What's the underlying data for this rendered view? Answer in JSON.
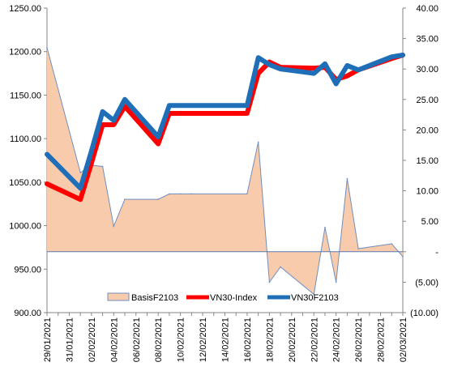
{
  "chart_data": {
    "type": "line",
    "title": "",
    "xlabel": "",
    "ylabel": "",
    "y2label": "",
    "ylim": [
      900,
      1250
    ],
    "y2lim": [
      -10,
      40
    ],
    "y_ticks": [
      "900.00",
      "950.00",
      "1000.00",
      "1050.00",
      "1100.00",
      "1150.00",
      "1200.00",
      "1250.00"
    ],
    "y2_ticks": [
      "(10.00)",
      "(5.00)",
      "-",
      "5.00",
      "10.00",
      "15.00",
      "20.00",
      "25.00",
      "30.00",
      "35.00",
      "40.00"
    ],
    "x_tick_labels": [
      "29/01/2021",
      "31/01/2021",
      "02/02/2021",
      "04/02/2021",
      "06/02/2021",
      "08/02/2021",
      "10/02/2021",
      "12/02/2021",
      "14/02/2021",
      "16/02/2021",
      "18/02/2021",
      "20/02/2021",
      "22/02/2021",
      "24/02/2021",
      "26/02/2021",
      "28/02/2021",
      "02/03/2021"
    ],
    "x_range": [
      "2021-01-29",
      "2021-03-02"
    ],
    "legend_position": "bottom",
    "grid": false,
    "series": [
      {
        "name": "BasisF2103",
        "type": "area",
        "axis": "right",
        "color": "#f8cbad",
        "stroke": "#6f8fbf",
        "x": [
          "2021-01-29",
          "2021-02-01",
          "2021-02-02",
          "2021-02-03",
          "2021-02-04",
          "2021-02-05",
          "2021-02-08",
          "2021-02-09",
          "2021-02-10",
          "2021-02-11",
          "2021-02-16",
          "2021-02-17",
          "2021-02-18",
          "2021-02-19",
          "2021-02-22",
          "2021-02-23",
          "2021-02-24",
          "2021-02-25",
          "2021-02-26",
          "2021-03-01",
          "2021-03-02"
        ],
        "values": [
          33.5,
          13.0,
          14.2,
          14.0,
          4.2,
          8.6,
          8.6,
          9.5,
          9.5,
          9.5,
          9.5,
          18.0,
          -5.0,
          -2.5,
          -7.0,
          4.0,
          -5.0,
          12.0,
          0.5,
          1.3,
          -0.8
        ]
      },
      {
        "name": "VN30-Index",
        "type": "line",
        "axis": "left",
        "color": "#ff0000",
        "x": [
          "2021-01-29",
          "2021-02-01",
          "2021-02-02",
          "2021-02-03",
          "2021-02-04",
          "2021-02-05",
          "2021-02-08",
          "2021-02-09",
          "2021-02-16",
          "2021-02-17",
          "2021-02-18",
          "2021-02-19",
          "2021-02-22",
          "2021-02-23",
          "2021-02-24",
          "2021-02-25",
          "2021-02-26",
          "2021-03-01",
          "2021-03-02"
        ],
        "values": [
          1048,
          1030,
          1072,
          1116,
          1116,
          1137,
          1094,
          1129,
          1129,
          1175,
          1188,
          1182,
          1181,
          1182,
          1168,
          1172,
          1179,
          1192,
          1196
        ]
      },
      {
        "name": "VN30F2103",
        "type": "line",
        "axis": "left",
        "color": "#1f6eb8",
        "x": [
          "2021-01-29",
          "2021-02-01",
          "2021-02-02",
          "2021-02-03",
          "2021-02-04",
          "2021-02-05",
          "2021-02-08",
          "2021-02-09",
          "2021-02-16",
          "2021-02-17",
          "2021-02-18",
          "2021-02-19",
          "2021-02-22",
          "2021-02-23",
          "2021-02-24",
          "2021-02-25",
          "2021-02-26",
          "2021-03-01",
          "2021-03-02"
        ],
        "values": [
          1082,
          1043,
          1086,
          1131,
          1121,
          1145,
          1102,
          1138,
          1138,
          1193,
          1185,
          1180,
          1175,
          1186,
          1163,
          1184,
          1179,
          1194,
          1196
        ]
      }
    ]
  }
}
